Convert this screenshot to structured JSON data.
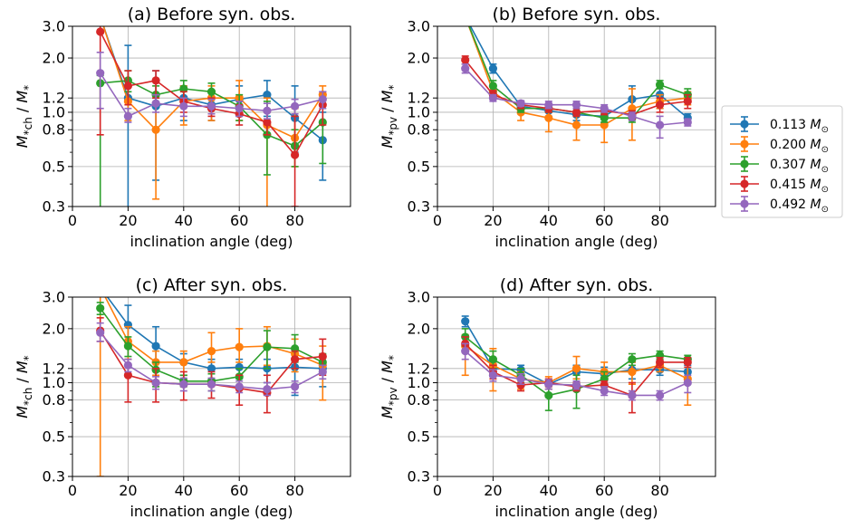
{
  "colors": {
    "0.113": "#1f77b4",
    "0.200": "#ff7f0e",
    "0.307": "#2ca02c",
    "0.415": "#d62728",
    "0.492": "#9467bd",
    "grid": "#b0b0b0"
  },
  "legend": [
    {
      "value": "0.113",
      "unit": "M",
      "sub": "⊙",
      "color": "#1f77b4"
    },
    {
      "value": "0.200",
      "unit": "M",
      "sub": "⊙",
      "color": "#ff7f0e"
    },
    {
      "value": "0.307",
      "unit": "M",
      "sub": "⊙",
      "color": "#2ca02c"
    },
    {
      "value": "0.415",
      "unit": "M",
      "sub": "⊙",
      "color": "#d62728"
    },
    {
      "value": "0.492",
      "unit": "M",
      "sub": "⊙",
      "color": "#9467bd"
    }
  ],
  "chart_data": [
    {
      "type": "line",
      "title": "(a) Before syn. obs.",
      "xlabel": "inclination angle (deg)",
      "ylabel": {
        "main": "M",
        "sub": "*ch",
        "tail": " / M",
        "tailsub": "*"
      },
      "xlim": [
        0,
        100
      ],
      "ylim": [
        0.3,
        3.0
      ],
      "yscale": "log",
      "xticks": [
        0,
        20,
        40,
        60,
        80
      ],
      "yticks": [
        0.3,
        0.5,
        0.8,
        1.0,
        1.2,
        2.0,
        3.0
      ],
      "yticklabels": [
        "0.3",
        "0.5",
        "0.8",
        "1.0",
        "1.2",
        "2.0",
        "3.0"
      ],
      "grid": true,
      "series": [
        {
          "name": "0.113",
          "x": [
            10,
            20,
            30,
            40,
            50,
            60,
            70,
            80,
            90
          ],
          "y": [
            3.4,
            1.2,
            1.08,
            1.2,
            1.1,
            1.18,
            1.25,
            0.93,
            0.7
          ],
          "lo": [
            3.4,
            0.28,
            0.42,
            0.9,
            0.9,
            0.95,
            0.95,
            0.6,
            0.42
          ],
          "hi": [
            3.4,
            2.35,
            1.7,
            1.4,
            1.3,
            1.4,
            1.5,
            1.4,
            1.0
          ]
        },
        {
          "name": "0.200",
          "x": [
            10,
            20,
            30,
            40,
            50,
            60,
            70,
            80,
            90
          ],
          "y": [
            3.4,
            1.15,
            0.8,
            1.15,
            1.2,
            1.2,
            0.85,
            0.72,
            1.25
          ],
          "lo": [
            3.4,
            0.9,
            0.33,
            0.85,
            0.9,
            0.9,
            0.28,
            0.5,
            1.1
          ],
          "hi": [
            3.4,
            1.4,
            1.2,
            1.4,
            1.4,
            1.5,
            1.2,
            1.05,
            1.4
          ]
        },
        {
          "name": "0.307",
          "x": [
            10,
            20,
            30,
            40,
            50,
            60,
            70,
            80,
            90
          ],
          "y": [
            1.45,
            1.5,
            1.25,
            1.35,
            1.3,
            1.08,
            0.75,
            0.65,
            0.88
          ],
          "lo": [
            0.28,
            1.3,
            1.1,
            1.2,
            1.1,
            0.9,
            0.45,
            0.5,
            0.52
          ],
          "hi": [
            1.6,
            1.7,
            1.4,
            1.5,
            1.45,
            1.25,
            1.15,
            0.8,
            1.1
          ]
        },
        {
          "name": "0.415",
          "x": [
            10,
            20,
            30,
            40,
            50,
            60,
            70,
            80,
            90
          ],
          "y": [
            2.8,
            1.4,
            1.5,
            1.15,
            1.05,
            0.98,
            0.88,
            0.58,
            1.1
          ],
          "lo": [
            0.75,
            1.1,
            1.2,
            1.0,
            0.95,
            0.85,
            0.75,
            0.3,
            0.85
          ],
          "hi": [
            3.2,
            1.7,
            1.7,
            1.3,
            1.2,
            1.1,
            1.0,
            0.95,
            1.3
          ]
        },
        {
          "name": "0.492",
          "x": [
            10,
            20,
            30,
            40,
            50,
            60,
            70,
            80,
            90
          ],
          "y": [
            1.65,
            0.95,
            1.12,
            1.08,
            1.08,
            1.05,
            1.02,
            1.08,
            1.18
          ],
          "lo": [
            1.05,
            0.88,
            1.0,
            0.95,
            0.98,
            0.95,
            0.92,
            0.98,
            1.05
          ],
          "hi": [
            2.15,
            1.05,
            1.25,
            1.2,
            1.18,
            1.15,
            1.12,
            1.18,
            1.3
          ]
        }
      ]
    },
    {
      "type": "line",
      "title": "(b) Before syn. obs.",
      "xlabel": "inclination angle (deg)",
      "ylabel": {
        "main": "M",
        "sub": "*pv",
        "tail": " / M",
        "tailsub": "*"
      },
      "xlim": [
        0,
        100
      ],
      "ylim": [
        0.3,
        3.0
      ],
      "yscale": "log",
      "xticks": [
        0,
        20,
        40,
        60,
        80
      ],
      "yticks": [
        0.3,
        0.5,
        0.8,
        1.0,
        1.2,
        2.0,
        3.0
      ],
      "yticklabels": [
        "0.3",
        "0.5",
        "0.8",
        "1.0",
        "1.2",
        "2.0",
        "3.0"
      ],
      "grid": true,
      "series": [
        {
          "name": "0.113",
          "x": [
            10,
            20,
            30,
            40,
            50,
            60,
            70,
            80,
            90
          ],
          "y": [
            3.4,
            1.75,
            1.08,
            1.02,
            0.97,
            0.95,
            1.18,
            1.25,
            0.93
          ],
          "lo": [
            3.4,
            1.65,
            1.0,
            0.95,
            0.9,
            0.88,
            0.95,
            1.05,
            0.88
          ],
          "hi": [
            3.4,
            1.85,
            1.15,
            1.1,
            1.05,
            1.02,
            1.4,
            1.45,
            0.98
          ]
        },
        {
          "name": "0.200",
          "x": [
            10,
            20,
            30,
            40,
            50,
            60,
            70,
            80,
            90
          ],
          "y": [
            3.4,
            1.3,
            1.0,
            0.93,
            0.85,
            0.85,
            1.05,
            1.15,
            1.2
          ],
          "lo": [
            3.4,
            1.2,
            0.9,
            0.78,
            0.7,
            0.68,
            0.7,
            1.05,
            1.1
          ],
          "hi": [
            3.4,
            1.4,
            1.1,
            1.05,
            1.0,
            1.0,
            1.35,
            1.25,
            1.3
          ]
        },
        {
          "name": "0.307",
          "x": [
            10,
            20,
            30,
            40,
            50,
            60,
            70,
            80,
            90
          ],
          "y": [
            3.4,
            1.4,
            1.05,
            1.05,
            1.0,
            0.93,
            0.93,
            1.42,
            1.25
          ],
          "lo": [
            3.4,
            1.3,
            1.0,
            1.0,
            0.95,
            0.88,
            0.88,
            1.35,
            1.18
          ],
          "hi": [
            3.4,
            1.5,
            1.12,
            1.1,
            1.05,
            0.98,
            0.98,
            1.5,
            1.35
          ]
        },
        {
          "name": "0.415",
          "x": [
            10,
            20,
            30,
            40,
            50,
            60,
            70,
            80,
            90
          ],
          "y": [
            1.95,
            1.25,
            1.1,
            1.05,
            1.0,
            1.02,
            0.97,
            1.1,
            1.15
          ],
          "lo": [
            1.85,
            1.18,
            1.05,
            1.0,
            0.95,
            0.97,
            0.92,
            1.0,
            1.05
          ],
          "hi": [
            2.05,
            1.32,
            1.15,
            1.1,
            1.05,
            1.07,
            1.02,
            1.2,
            1.25
          ]
        },
        {
          "name": "0.492",
          "x": [
            10,
            20,
            30,
            40,
            50,
            60,
            70,
            80,
            90
          ],
          "y": [
            1.75,
            1.2,
            1.12,
            1.1,
            1.1,
            1.05,
            0.95,
            0.85,
            0.88
          ],
          "lo": [
            1.65,
            1.15,
            1.08,
            1.05,
            1.05,
            1.0,
            0.9,
            0.72,
            0.84
          ],
          "hi": [
            1.85,
            1.25,
            1.16,
            1.15,
            1.15,
            1.1,
            1.0,
            0.95,
            0.92
          ]
        }
      ]
    },
    {
      "type": "line",
      "title": "(c) After syn. obs.",
      "xlabel": "inclination angle (deg)",
      "ylabel": {
        "main": "M",
        "sub": "*ch",
        "tail": " / M",
        "tailsub": "*"
      },
      "xlim": [
        0,
        100
      ],
      "ylim": [
        0.3,
        3.0
      ],
      "yscale": "log",
      "xticks": [
        0,
        20,
        40,
        60,
        80
      ],
      "yticks": [
        0.3,
        0.5,
        0.8,
        1.0,
        1.2,
        2.0,
        3.0
      ],
      "yticklabels": [
        "0.3",
        "0.5",
        "0.8",
        "1.0",
        "1.2",
        "2.0",
        "3.0"
      ],
      "grid": true,
      "series": [
        {
          "name": "0.113",
          "x": [
            10,
            20,
            30,
            40,
            50,
            60,
            70,
            80,
            90
          ],
          "y": [
            3.4,
            2.1,
            1.6,
            1.3,
            1.2,
            1.22,
            1.2,
            1.22,
            1.2
          ],
          "lo": [
            3.4,
            1.6,
            1.3,
            1.1,
            1.05,
            1.05,
            1.0,
            0.85,
            0.95
          ],
          "hi": [
            3.4,
            2.7,
            2.05,
            1.45,
            1.35,
            1.35,
            1.35,
            1.5,
            1.4
          ]
        },
        {
          "name": "0.200",
          "x": [
            10,
            20,
            30,
            40,
            50,
            60,
            70,
            80,
            90
          ],
          "y": [
            3.4,
            1.7,
            1.3,
            1.3,
            1.5,
            1.58,
            1.6,
            1.45,
            1.25
          ],
          "lo": [
            0.3,
            1.35,
            1.1,
            1.1,
            1.3,
            1.3,
            1.25,
            1.15,
            0.8
          ],
          "hi": [
            3.4,
            2.05,
            1.5,
            1.5,
            1.9,
            2.0,
            2.05,
            1.75,
            1.6
          ]
        },
        {
          "name": "0.307",
          "x": [
            10,
            20,
            30,
            40,
            50,
            60,
            70,
            80,
            90
          ],
          "y": [
            2.6,
            1.6,
            1.18,
            1.02,
            1.02,
            1.08,
            1.58,
            1.55,
            1.3
          ],
          "lo": [
            2.4,
            1.4,
            0.95,
            0.95,
            0.9,
            0.95,
            1.2,
            1.3,
            1.15
          ],
          "hi": [
            2.8,
            1.8,
            1.3,
            1.1,
            1.12,
            1.2,
            1.95,
            1.85,
            1.45
          ]
        },
        {
          "name": "0.415",
          "x": [
            10,
            20,
            30,
            40,
            50,
            60,
            70,
            80,
            90
          ],
          "y": [
            1.95,
            1.1,
            1.0,
            0.98,
            0.98,
            0.93,
            0.88,
            1.35,
            1.4
          ],
          "lo": [
            1.7,
            0.78,
            0.78,
            0.8,
            0.82,
            0.75,
            0.68,
            1.2,
            1.1
          ],
          "hi": [
            2.3,
            1.35,
            1.2,
            1.15,
            1.15,
            1.1,
            1.1,
            1.5,
            1.75
          ]
        },
        {
          "name": "0.492",
          "x": [
            10,
            20,
            30,
            40,
            50,
            60,
            70,
            80,
            90
          ],
          "y": [
            1.9,
            1.25,
            1.0,
            0.98,
            0.98,
            0.95,
            0.92,
            0.95,
            1.15
          ],
          "lo": [
            1.7,
            1.15,
            0.92,
            0.9,
            0.9,
            0.88,
            0.85,
            0.88,
            1.05
          ],
          "hi": [
            2.15,
            1.35,
            1.08,
            1.06,
            1.06,
            1.02,
            1.0,
            1.02,
            1.25
          ]
        }
      ]
    },
    {
      "type": "line",
      "title": "(d) After syn. obs.",
      "xlabel": "inclination angle (deg)",
      "ylabel": {
        "main": "M",
        "sub": "*pv",
        "tail": " / M",
        "tailsub": "*"
      },
      "xlim": [
        0,
        100
      ],
      "ylim": [
        0.3,
        3.0
      ],
      "yscale": "log",
      "xticks": [
        0,
        20,
        40,
        60,
        80
      ],
      "yticks": [
        0.3,
        0.5,
        0.8,
        1.0,
        1.2,
        2.0,
        3.0
      ],
      "yticklabels": [
        "0.3",
        "0.5",
        "0.8",
        "1.0",
        "1.2",
        "2.0",
        "3.0"
      ],
      "grid": true,
      "series": [
        {
          "name": "0.113",
          "x": [
            10,
            20,
            30,
            40,
            50,
            60,
            70,
            80,
            90
          ],
          "y": [
            2.2,
            1.2,
            1.18,
            0.98,
            1.15,
            1.12,
            1.18,
            1.18,
            1.15
          ],
          "lo": [
            2.05,
            1.1,
            1.1,
            0.92,
            1.05,
            1.02,
            1.05,
            1.1,
            1.05
          ],
          "hi": [
            2.35,
            1.3,
            1.25,
            1.04,
            1.25,
            1.22,
            1.3,
            1.26,
            1.25
          ]
        },
        {
          "name": "0.200",
          "x": [
            10,
            20,
            30,
            40,
            50,
            60,
            70,
            80,
            90
          ],
          "y": [
            1.6,
            1.25,
            1.05,
            1.0,
            1.2,
            1.15,
            1.15,
            1.25,
            1.05
          ],
          "lo": [
            1.1,
            0.9,
            0.92,
            0.92,
            1.05,
            1.05,
            0.98,
            1.15,
            0.75
          ],
          "hi": [
            1.85,
            1.55,
            1.15,
            1.08,
            1.4,
            1.3,
            1.3,
            1.35,
            1.3
          ]
        },
        {
          "name": "0.307",
          "x": [
            10,
            20,
            30,
            40,
            50,
            60,
            70,
            80,
            90
          ],
          "y": [
            1.8,
            1.35,
            1.1,
            0.85,
            0.92,
            1.05,
            1.35,
            1.42,
            1.35
          ],
          "lo": [
            1.6,
            1.2,
            1.0,
            0.7,
            0.72,
            0.95,
            1.25,
            1.35,
            1.28
          ],
          "hi": [
            2.0,
            1.5,
            1.2,
            0.98,
            1.1,
            1.15,
            1.45,
            1.5,
            1.42
          ]
        },
        {
          "name": "0.415",
          "x": [
            10,
            20,
            30,
            40,
            50,
            60,
            70,
            80,
            90
          ],
          "y": [
            1.65,
            1.15,
            0.97,
            1.0,
            0.95,
            0.97,
            0.85,
            1.3,
            1.3
          ],
          "lo": [
            1.5,
            1.05,
            0.9,
            0.95,
            0.9,
            0.92,
            0.68,
            1.22,
            1.22
          ],
          "hi": [
            1.8,
            1.25,
            1.05,
            1.05,
            1.0,
            1.02,
            1.0,
            1.38,
            1.38
          ]
        },
        {
          "name": "0.492",
          "x": [
            10,
            20,
            30,
            40,
            50,
            60,
            70,
            80,
            90
          ],
          "y": [
            1.5,
            1.1,
            1.05,
            0.98,
            0.97,
            0.9,
            0.85,
            0.85,
            1.0
          ],
          "lo": [
            1.35,
            1.02,
            0.98,
            0.92,
            0.92,
            0.85,
            0.8,
            0.8,
            0.88
          ],
          "hi": [
            1.65,
            1.18,
            1.12,
            1.04,
            1.02,
            0.95,
            0.9,
            0.9,
            1.1
          ]
        }
      ]
    }
  ]
}
